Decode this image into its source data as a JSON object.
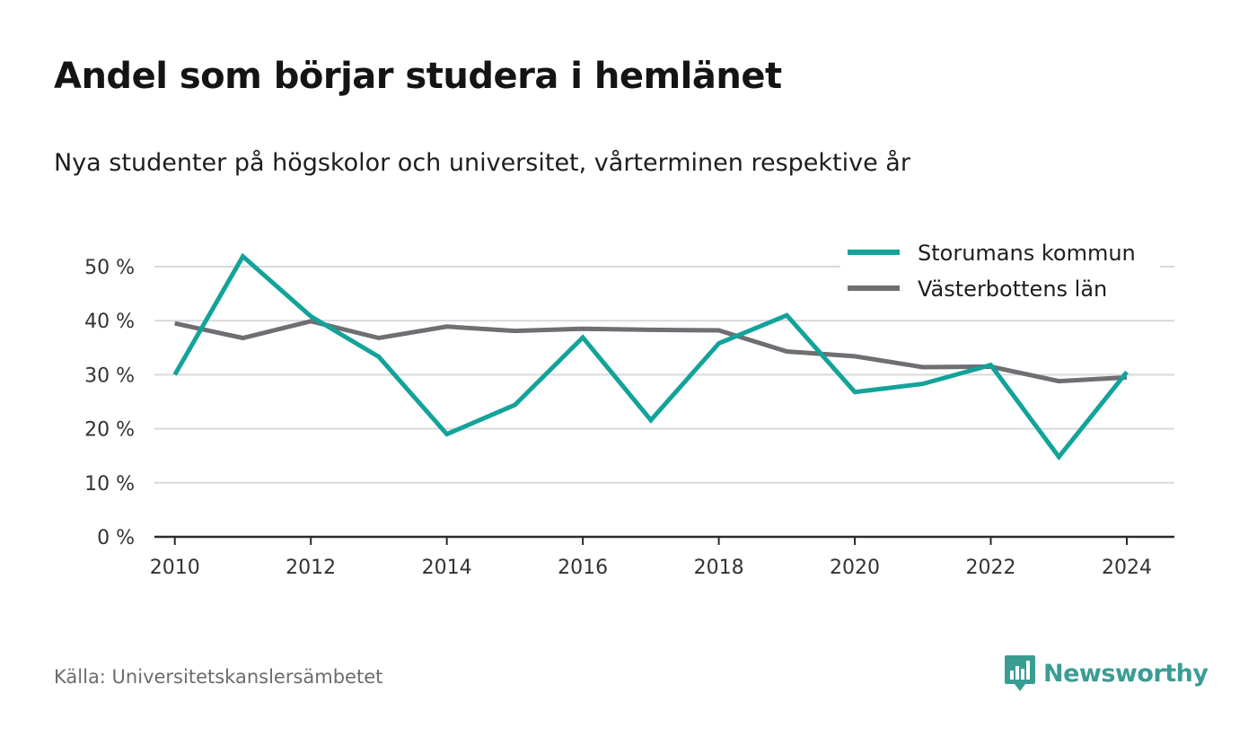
{
  "title": "Andel som börjar studera i hemlänet",
  "subtitle": "Nya studenter på högskolor och universitet, vårterminen respektive år",
  "source": "Källa: Universitetskanslersämbetet",
  "brand": {
    "name": "Newsworthy",
    "color": "#3a9d94",
    "icon": "newsworthy-logo-icon"
  },
  "chart_data": {
    "type": "line",
    "x": [
      2010,
      2011,
      2012,
      2013,
      2014,
      2015,
      2016,
      2017,
      2018,
      2019,
      2020,
      2021,
      2022,
      2023,
      2024
    ],
    "xticks": [
      2010,
      2012,
      2014,
      2016,
      2018,
      2020,
      2022,
      2024
    ],
    "xtick_labels": [
      "2010",
      "2012",
      "2014",
      "2016",
      "2018",
      "2020",
      "2022",
      "2024"
    ],
    "xlim": [
      2009.7,
      2024.7
    ],
    "ylim": [
      0,
      50
    ],
    "yticks": [
      0,
      10,
      20,
      30,
      40,
      50
    ],
    "ytick_labels": [
      "0 %",
      "10 %",
      "20 %",
      "30 %",
      "40 %",
      "50 %"
    ],
    "grid": true,
    "legend_position": "top-right",
    "series": [
      {
        "name": "Storumans kommun",
        "color": "#12a39a",
        "values": [
          30.0,
          51.9,
          40.8,
          33.3,
          19.0,
          24.4,
          36.9,
          21.6,
          35.8,
          41.0,
          26.8,
          28.3,
          31.8,
          14.8,
          30.5
        ]
      },
      {
        "name": "Västerbottens län",
        "color": "#6e6e73",
        "values": [
          39.5,
          36.8,
          39.9,
          36.8,
          38.9,
          38.1,
          38.5,
          38.3,
          38.2,
          34.3,
          33.4,
          31.4,
          31.5,
          28.8,
          29.5
        ]
      }
    ]
  }
}
